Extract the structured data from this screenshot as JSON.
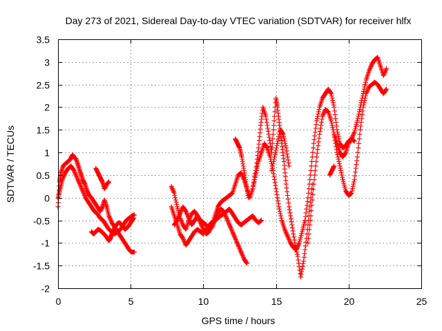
{
  "chart_data": {
    "type": "scatter",
    "title": "Day 273 of 2021, Sidereal Day-to-day VTEC variation (SDTVAR) for receiver hlfx",
    "xlabel": "GPS time / hours",
    "ylabel": "SDTVAR / TECUs",
    "xlim": [
      0,
      25
    ],
    "ylim": [
      -2,
      3.5
    ],
    "xticks": [
      0,
      5,
      10,
      15,
      20,
      25
    ],
    "yticks": [
      -2,
      -1.5,
      -1,
      -0.5,
      0,
      0.5,
      1,
      1.5,
      2,
      2.5,
      3,
      3.5
    ],
    "grid": true,
    "marker": "+",
    "color": "#ff0000",
    "series": [
      {
        "segments": [
          {
            "x": [
              0.0,
              0.1,
              0.2,
              0.35,
              0.5,
              0.7,
              0.85,
              1.0,
              1.1,
              1.25,
              1.4,
              1.55,
              1.7,
              1.85,
              2.0,
              2.15,
              2.3,
              2.5,
              2.7,
              2.9,
              3.05,
              3.2,
              3.35,
              3.5,
              3.7,
              3.9,
              4.1,
              4.3,
              4.5,
              4.7,
              4.9,
              5.05,
              5.25
            ],
            "y": [
              -0.2,
              0.35,
              0.55,
              0.7,
              0.75,
              0.8,
              0.85,
              0.95,
              0.9,
              0.85,
              0.7,
              0.55,
              0.4,
              0.3,
              0.15,
              0.05,
              0.0,
              -0.1,
              -0.2,
              -0.3,
              -0.2,
              -0.05,
              -0.2,
              -0.4,
              -0.55,
              -0.65,
              -0.75,
              -0.85,
              -0.95,
              -1.05,
              -1.15,
              -1.2,
              -1.2
            ]
          },
          {
            "x": [
              0.0,
              0.15,
              0.3,
              0.5,
              0.7,
              0.9,
              1.1,
              1.3,
              1.5,
              1.7,
              1.9,
              2.1,
              2.3,
              2.5,
              2.7,
              2.9,
              3.1,
              3.3,
              3.5,
              3.7,
              3.9,
              4.1,
              4.3,
              4.5,
              4.7,
              4.9,
              5.1,
              5.25
            ],
            "y": [
              0.0,
              0.2,
              0.4,
              0.55,
              0.65,
              0.7,
              0.6,
              0.45,
              0.3,
              0.15,
              0.0,
              -0.1,
              -0.2,
              -0.3,
              -0.35,
              -0.45,
              -0.5,
              -0.6,
              -0.7,
              -0.75,
              -0.8,
              -0.75,
              -0.7,
              -0.6,
              -0.5,
              -0.45,
              -0.4,
              -0.38
            ]
          },
          {
            "x": [
              2.3,
              2.45,
              2.6,
              2.75,
              2.9,
              3.1,
              3.3,
              3.5,
              3.6,
              3.7,
              3.85,
              4.0,
              4.2,
              4.4,
              4.6,
              4.8,
              5.0,
              5.2
            ],
            "y": [
              -0.75,
              -0.8,
              -0.75,
              -0.7,
              -0.72,
              -0.78,
              -0.85,
              -0.95,
              -0.9,
              -0.8,
              -0.7,
              -0.6,
              -0.55,
              -0.6,
              -0.7,
              -0.65,
              -0.55,
              -0.45
            ]
          },
          {
            "x": [
              2.6,
              2.75,
              2.9,
              3.05,
              3.2,
              3.35,
              3.5
            ],
            "y": [
              0.65,
              0.55,
              0.45,
              0.35,
              0.2,
              0.3,
              0.35
            ]
          },
          {
            "x": [
              7.8,
              8.0,
              8.2,
              8.4,
              8.6,
              8.8,
              9.0,
              9.2,
              9.4,
              9.6,
              9.8,
              10.0,
              10.2,
              10.4,
              10.6,
              10.8,
              11.0,
              11.2,
              11.4,
              11.6,
              11.8,
              12.0,
              12.2,
              12.4,
              12.6,
              12.8,
              13.0,
              13.2,
              13.4,
              13.6,
              13.8,
              14.0
            ],
            "y": [
              -0.2,
              -0.4,
              -0.6,
              -0.8,
              -0.9,
              -1.05,
              -0.95,
              -0.85,
              -0.75,
              -0.7,
              -0.75,
              -0.8,
              -0.7,
              -0.6,
              -0.55,
              -0.5,
              -0.45,
              -0.4,
              -0.35,
              -0.3,
              -0.25,
              -0.35,
              -0.45,
              -0.55,
              -0.6,
              -0.55,
              -0.5,
              -0.45,
              -0.4,
              -0.5,
              -0.55,
              -0.5
            ]
          },
          {
            "x": [
              7.8,
              8.0,
              8.2,
              8.4,
              8.6,
              8.8,
              9.0,
              9.2,
              9.4,
              9.6,
              9.8,
              10.0,
              10.2,
              10.4,
              10.6,
              10.8,
              11.0,
              11.2,
              11.4,
              11.6,
              11.8,
              12.0,
              12.2,
              12.4,
              12.6,
              12.8,
              13.0
            ],
            "y": [
              0.25,
              0.1,
              -0.2,
              -0.45,
              -0.6,
              -0.7,
              -0.5,
              -0.35,
              -0.3,
              -0.4,
              -0.5,
              -0.55,
              -0.6,
              -0.7,
              -0.65,
              -0.5,
              -0.35,
              -0.25,
              -0.3,
              -0.45,
              -0.6,
              -0.75,
              -0.9,
              -1.05,
              -1.2,
              -1.35,
              -1.45
            ]
          },
          {
            "x": [
              8.0,
              8.2,
              8.4,
              8.6,
              8.8,
              9.0,
              9.2,
              9.4,
              9.6,
              9.8,
              10.0,
              10.2,
              10.4,
              10.6,
              10.8,
              11.0,
              11.2,
              11.4,
              11.6,
              11.8,
              12.0,
              12.2,
              12.4,
              12.6,
              12.8,
              13.0,
              13.2,
              13.4,
              13.6,
              13.8,
              14.0,
              14.2,
              14.4,
              14.6,
              14.8,
              15.0,
              15.2,
              15.4,
              15.6,
              15.8,
              16.0,
              16.2,
              16.4,
              16.6,
              16.8,
              17.0
            ],
            "y": [
              -0.6,
              -0.5,
              -0.35,
              -0.2,
              -0.3,
              -0.45,
              -0.6,
              -0.5,
              -0.4,
              -0.55,
              -0.7,
              -0.8,
              -0.75,
              -0.6,
              -0.4,
              -0.2,
              -0.1,
              -0.05,
              0.0,
              0.05,
              0.1,
              0.3,
              0.5,
              0.55,
              0.4,
              0.2,
              0.0,
              0.2,
              0.5,
              0.8,
              1.0,
              1.2,
              1.1,
              0.9,
              0.6,
              0.2,
              -0.2,
              -0.5,
              -0.7,
              -0.85,
              -1.0,
              -1.1,
              -1.15,
              -1.0,
              -0.75,
              -0.5
            ]
          },
          {
            "x": [
              12.2,
              12.35,
              12.5,
              12.65,
              12.8,
              12.95,
              13.1
            ],
            "y": [
              1.3,
              1.2,
              1.1,
              0.9,
              0.6,
              0.3,
              0.0
            ]
          },
          {
            "x": [
              13.4,
              13.6,
              13.8,
              13.95,
              14.1,
              14.3,
              14.5,
              14.7,
              14.85,
              15.0,
              15.1,
              15.25,
              15.4,
              15.55,
              15.7,
              15.9,
              16.1,
              16.3,
              16.5,
              16.7,
              16.9,
              17.1,
              17.3,
              17.5
            ],
            "y": [
              0.2,
              0.6,
              1.1,
              1.6,
              2.0,
              1.8,
              1.4,
              1.0,
              1.6,
              2.2,
              2.0,
              1.6,
              1.2,
              0.8,
              0.3,
              -0.2,
              -0.6,
              -1.0,
              -1.3,
              -1.75,
              -1.4,
              -0.9,
              -0.3,
              0.3
            ]
          },
          {
            "x": [
              14.7,
              14.9,
              15.1,
              15.3,
              15.5,
              15.7,
              15.9
            ],
            "y": [
              0.6,
              0.9,
              1.2,
              1.5,
              1.4,
              1.1,
              0.7
            ]
          },
          {
            "x": [
              17.0,
              17.2,
              17.4,
              17.6,
              17.8,
              18.0,
              18.2,
              18.4,
              18.6,
              18.8,
              19.0,
              19.2,
              19.4,
              19.6,
              19.8,
              20.0,
              20.2,
              20.4,
              20.6,
              20.8,
              21.0,
              21.2,
              21.4,
              21.6,
              21.8,
              22.0,
              22.2,
              22.4,
              22.6
            ],
            "y": [
              -0.5,
              0.0,
              0.6,
              1.2,
              1.7,
              2.0,
              2.2,
              2.3,
              2.4,
              2.3,
              2.0,
              1.5,
              1.2,
              1.1,
              1.15,
              1.25,
              1.3,
              1.45,
              1.7,
              2.0,
              2.3,
              2.6,
              2.8,
              2.95,
              3.05,
              3.1,
              2.9,
              2.7,
              2.85
            ]
          },
          {
            "x": [
              17.2,
              17.4,
              17.6,
              17.8,
              18.0,
              18.2,
              18.4,
              18.6,
              18.8,
              19.0,
              19.2,
              19.4,
              19.6,
              19.8,
              20.0,
              20.2,
              20.4,
              20.6,
              20.8,
              21.0,
              21.2,
              21.4,
              21.6,
              21.8,
              22.0,
              22.2,
              22.4,
              22.6
            ],
            "y": [
              -1.0,
              -0.4,
              0.3,
              0.9,
              1.4,
              1.8,
              1.95,
              1.9,
              1.7,
              1.4,
              1.0,
              0.7,
              0.4,
              0.15,
              0.05,
              0.1,
              0.4,
              0.9,
              1.5,
              2.0,
              2.3,
              2.45,
              2.5,
              2.55,
              2.5,
              2.4,
              2.3,
              2.4
            ]
          },
          {
            "x": [
              18.7,
              18.85,
              19.0
            ],
            "y": [
              0.5,
              0.6,
              0.7
            ]
          },
          {
            "x": [
              19.0,
              19.2,
              19.4,
              19.6,
              19.8,
              20.0,
              20.2,
              20.4
            ],
            "y": [
              1.4,
              1.2,
              1.0,
              0.9,
              1.0,
              1.2,
              1.3,
              1.25
            ]
          }
        ]
      }
    ]
  }
}
